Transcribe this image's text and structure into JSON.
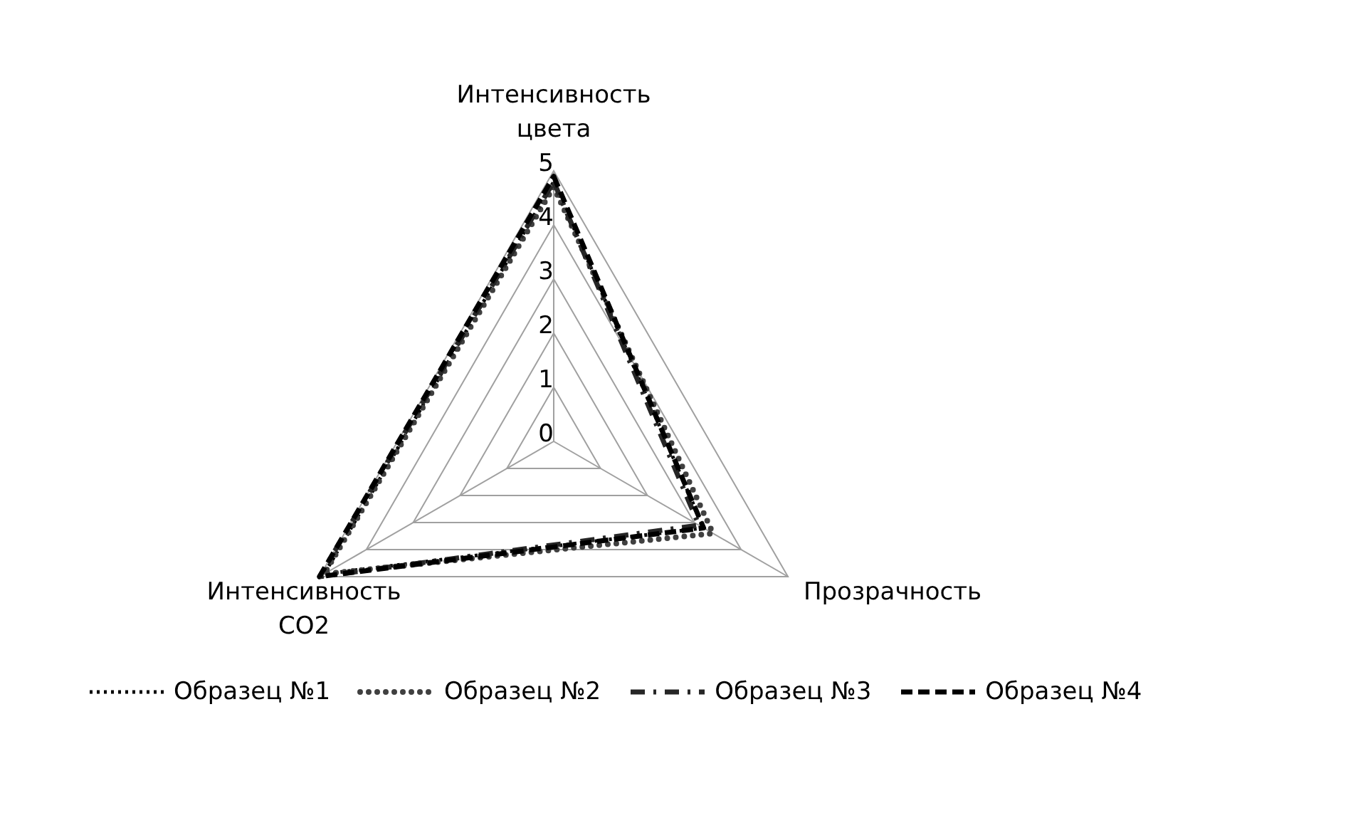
{
  "chart_data": {
    "type": "radar",
    "categories": [
      "Интенсивность цвета",
      "Прозрачность",
      "Интенсивность CO2"
    ],
    "series": [
      {
        "name": "Образец №1",
        "color": "#000000",
        "line_style": "dotted",
        "values": [
          4.8,
          3.2,
          4.9
        ]
      },
      {
        "name": "Образец №2",
        "color": "#404040",
        "line_style": "round_dots",
        "values": [
          4.7,
          3.4,
          4.9
        ]
      },
      {
        "name": "Образец №3",
        "color": "#262626",
        "line_style": "dash_dot",
        "values": [
          4.8,
          3.1,
          5
        ]
      },
      {
        "name": "Образец №4",
        "color": "#000000",
        "line_style": "dashed",
        "values": [
          4.9,
          3.2,
          5
        ]
      }
    ],
    "ylim": [
      0,
      5
    ],
    "yticks": [
      0,
      1,
      2,
      3,
      4,
      5
    ],
    "grid": true,
    "legend": "bottom",
    "marker": "none"
  }
}
